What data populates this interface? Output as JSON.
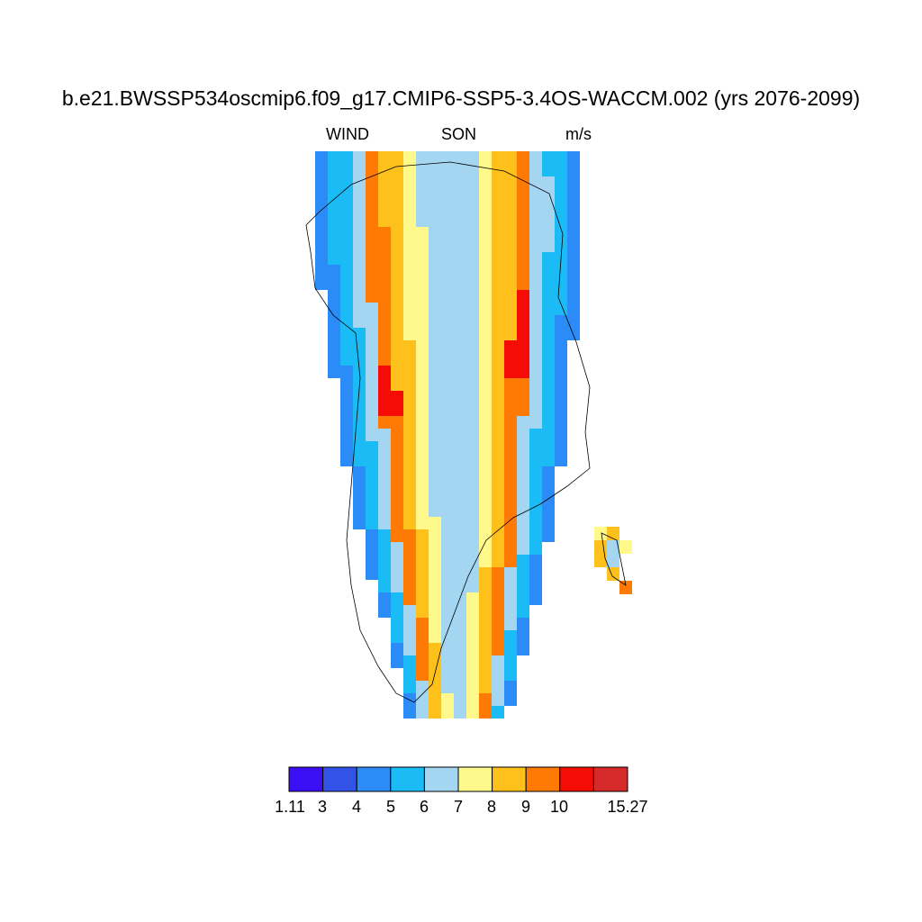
{
  "title": "b.e21.BWSSP534oscmip6.f09_g17.CMIP6-SSP5-3.4OS-WACCM.002 (yrs 2076-2099)",
  "subtitle": {
    "variable": "WIND",
    "season": "SON",
    "units": "m/s"
  },
  "colorbar": {
    "colors": [
      "#3b0ff5",
      "#3352e6",
      "#2b8cf7",
      "#1bbcf6",
      "#a4d6f2",
      "#fff88a",
      "#fec01a",
      "#ff7a05",
      "#f50d05",
      "#d62a2a"
    ],
    "labels": [
      "1.11",
      "3",
      "4",
      "5",
      "6",
      "7",
      "8",
      "9",
      "10",
      "15.27"
    ]
  },
  "map": {
    "region": "Greenland",
    "field": "WIND",
    "grid_rows": [
      "..........................",
      "...........................",
      "............................",
      "...........................",
      "...................."
    ]
  }
}
